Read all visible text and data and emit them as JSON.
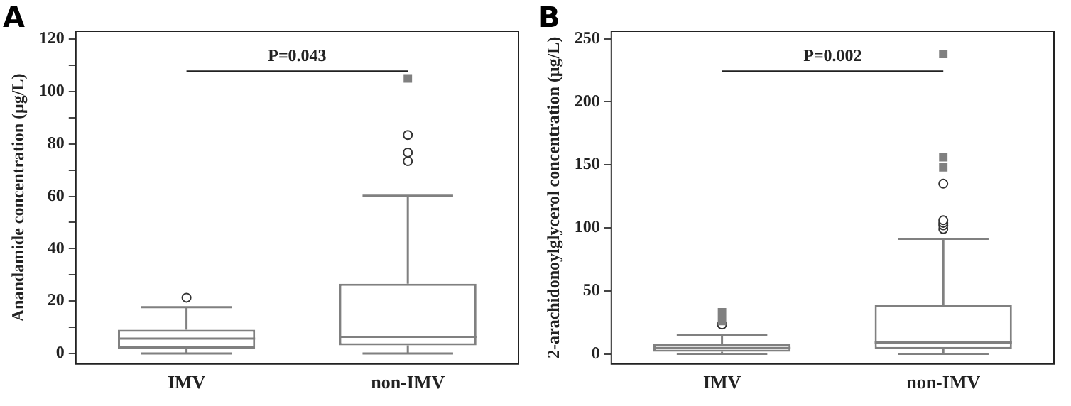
{
  "chart_data": [
    {
      "type": "box",
      "title": "A",
      "ylabel": "Anandamide concentration (μg/L)",
      "categories": [
        "IMV",
        "non-IMV"
      ],
      "color": "#808080",
      "boxes": [
        {
          "low": 0,
          "q1": 1.9,
          "median": 5.7,
          "q3": 9.1,
          "high": 17.7,
          "outliers": [
            21.3
          ]
        },
        {
          "low": 0,
          "q1": 3.1,
          "median": 6.4,
          "q3": 26.6,
          "high": 60.2,
          "outliers": [
            73.4,
            76.7,
            83.4
          ]
        }
      ],
      "series": [
        {
          "type": "scatter",
          "x": [
            "non-IMV"
          ],
          "values": [
            105
          ],
          "marker": "square",
          "color": "#808080"
        }
      ],
      "ylim": [
        -4,
        123
      ],
      "yticks": [
        0,
        {
          "value": 10,
          "label": null
        },
        20,
        {
          "value": 30,
          "label": null
        },
        40,
        {
          "value": 50,
          "label": null
        },
        60,
        {
          "value": 70,
          "label": null
        },
        80,
        {
          "value": 90,
          "label": null
        },
        100,
        {
          "value": 110,
          "label": null
        },
        120
      ],
      "annotations": [
        "P=0.043"
      ],
      "grid": false,
      "legend": false
    },
    {
      "type": "box",
      "title": "B",
      "ylabel": "2-arachidonoylglycerol concentration (μg/L)",
      "categories": [
        "IMV",
        "non-IMV"
      ],
      "color": "#808080",
      "boxes": [
        {
          "low": 0,
          "q1": 1.8,
          "median": 4.7,
          "q3": 8.2,
          "high": 14.7,
          "outliers": [
            23.3
          ]
        },
        {
          "low": 0,
          "q1": 3.9,
          "median": 9,
          "q3": 39,
          "high": 91.3,
          "outliers": [
            99,
            102,
            104,
            106,
            135
          ]
        }
      ],
      "series": [
        {
          "type": "scatter",
          "x": [
            "IMV",
            "IMV",
            "IMV",
            "non-IMV",
            "non-IMV",
            "non-IMV"
          ],
          "values": [
            26,
            null,
            33,
            148,
            156,
            238
          ],
          "marker": "square",
          "color": "#808080"
        }
      ],
      "ylim": [
        -8,
        256
      ],
      "yticks": [
        0,
        50,
        100,
        150,
        200,
        250
      ],
      "annotations": [
        "P=0.002"
      ],
      "grid": false,
      "legend": false
    }
  ]
}
